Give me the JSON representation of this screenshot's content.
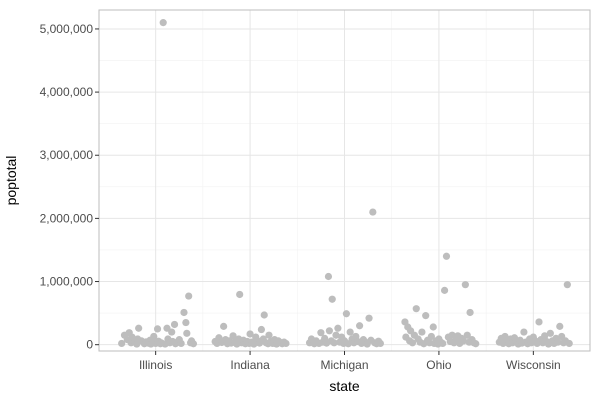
{
  "chart_data": {
    "type": "scatter",
    "xlabel": "state",
    "ylabel": "poptotal",
    "categories": [
      "Illinois",
      "Indiana",
      "Michigan",
      "Ohio",
      "Wisconsin"
    ],
    "y_ticks": [
      0,
      1000000,
      2000000,
      3000000,
      4000000,
      5000000
    ],
    "y_tick_labels": [
      "0",
      "1,000,000",
      "2,000,000",
      "3,000,000",
      "4,000,000",
      "5,000,000"
    ],
    "ylim": [
      -100000,
      5300000
    ],
    "grid": true,
    "jitter": true,
    "point_color": "#bdbdbd",
    "series": [
      {
        "category": "Illinois",
        "points": [
          [
            -0.36,
            20000
          ],
          [
            -0.33,
            150000
          ],
          [
            -0.3,
            80000
          ],
          [
            -0.28,
            190000
          ],
          [
            -0.26,
            30000
          ],
          [
            -0.25,
            120000
          ],
          [
            -0.22,
            40000
          ],
          [
            -0.2,
            10000
          ],
          [
            -0.19,
            90000
          ],
          [
            -0.18,
            260000
          ],
          [
            -0.15,
            60000
          ],
          [
            -0.12,
            15000
          ],
          [
            -0.1,
            45000
          ],
          [
            -0.08,
            25000
          ],
          [
            -0.06,
            70000
          ],
          [
            -0.05,
            10000
          ],
          [
            -0.03,
            35000
          ],
          [
            -0.02,
            130000
          ],
          [
            0.0,
            20000
          ],
          [
            0.02,
            250000
          ],
          [
            0.03,
            55000
          ],
          [
            0.05,
            15000
          ],
          [
            0.06,
            30000
          ],
          [
            0.08,
            5100000
          ],
          [
            0.1,
            10000
          ],
          [
            0.12,
            260000
          ],
          [
            0.13,
            90000
          ],
          [
            0.15,
            30000
          ],
          [
            0.17,
            200000
          ],
          [
            0.18,
            50000
          ],
          [
            0.2,
            320000
          ],
          [
            0.21,
            15000
          ],
          [
            0.23,
            40000
          ],
          [
            0.25,
            80000
          ],
          [
            0.27,
            20000
          ],
          [
            0.3,
            510000
          ],
          [
            0.32,
            350000
          ],
          [
            0.33,
            180000
          ],
          [
            0.35,
            770000
          ],
          [
            0.37,
            30000
          ],
          [
            0.38,
            60000
          ],
          [
            0.4,
            15000
          ]
        ]
      },
      {
        "category": "Indiana",
        "points": [
          [
            -0.37,
            50000
          ],
          [
            -0.35,
            20000
          ],
          [
            -0.33,
            110000
          ],
          [
            -0.3,
            35000
          ],
          [
            -0.28,
            290000
          ],
          [
            -0.26,
            80000
          ],
          [
            -0.24,
            15000
          ],
          [
            -0.22,
            60000
          ],
          [
            -0.2,
            25000
          ],
          [
            -0.18,
            140000
          ],
          [
            -0.16,
            40000
          ],
          [
            -0.14,
            10000
          ],
          [
            -0.12,
            90000
          ],
          [
            -0.11,
            795000
          ],
          [
            -0.09,
            30000
          ],
          [
            -0.07,
            70000
          ],
          [
            -0.05,
            15000
          ],
          [
            -0.03,
            50000
          ],
          [
            -0.01,
            20000
          ],
          [
            0.0,
            170000
          ],
          [
            0.02,
            40000
          ],
          [
            0.04,
            10000
          ],
          [
            0.06,
            120000
          ],
          [
            0.08,
            60000
          ],
          [
            0.1,
            25000
          ],
          [
            0.12,
            240000
          ],
          [
            0.14,
            90000
          ],
          [
            0.15,
            470000
          ],
          [
            0.17,
            30000
          ],
          [
            0.19,
            15000
          ],
          [
            0.2,
            150000
          ],
          [
            0.22,
            50000
          ],
          [
            0.24,
            20000
          ],
          [
            0.26,
            80000
          ],
          [
            0.28,
            10000
          ],
          [
            0.3,
            60000
          ],
          [
            0.32,
            35000
          ],
          [
            0.34,
            15000
          ],
          [
            0.36,
            40000
          ],
          [
            0.38,
            20000
          ]
        ]
      },
      {
        "category": "Michigan",
        "points": [
          [
            -0.37,
            30000
          ],
          [
            -0.35,
            90000
          ],
          [
            -0.32,
            15000
          ],
          [
            -0.3,
            60000
          ],
          [
            -0.27,
            20000
          ],
          [
            -0.25,
            190000
          ],
          [
            -0.23,
            40000
          ],
          [
            -0.21,
            100000
          ],
          [
            -0.19,
            25000
          ],
          [
            -0.17,
            1080000
          ],
          [
            -0.16,
            220000
          ],
          [
            -0.14,
            60000
          ],
          [
            -0.13,
            720000
          ],
          [
            -0.11,
            30000
          ],
          [
            -0.09,
            150000
          ],
          [
            -0.07,
            260000
          ],
          [
            -0.05,
            40000
          ],
          [
            -0.03,
            120000
          ],
          [
            -0.01,
            20000
          ],
          [
            0.0,
            60000
          ],
          [
            0.02,
            490000
          ],
          [
            0.04,
            15000
          ],
          [
            0.06,
            200000
          ],
          [
            0.08,
            90000
          ],
          [
            0.1,
            30000
          ],
          [
            0.12,
            130000
          ],
          [
            0.14,
            50000
          ],
          [
            0.16,
            300000
          ],
          [
            0.18,
            20000
          ],
          [
            0.2,
            80000
          ],
          [
            0.22,
            40000
          ],
          [
            0.24,
            10000
          ],
          [
            0.26,
            420000
          ],
          [
            0.28,
            70000
          ],
          [
            0.3,
            2100000
          ],
          [
            0.32,
            30000
          ],
          [
            0.34,
            15000
          ],
          [
            0.36,
            55000
          ],
          [
            0.38,
            20000
          ]
        ]
      },
      {
        "category": "Ohio",
        "points": [
          [
            -0.36,
            360000
          ],
          [
            -0.35,
            120000
          ],
          [
            -0.33,
            280000
          ],
          [
            -0.31,
            60000
          ],
          [
            -0.3,
            220000
          ],
          [
            -0.28,
            30000
          ],
          [
            -0.26,
            150000
          ],
          [
            -0.24,
            570000
          ],
          [
            -0.22,
            90000
          ],
          [
            -0.2,
            40000
          ],
          [
            -0.18,
            200000
          ],
          [
            -0.16,
            15000
          ],
          [
            -0.14,
            460000
          ],
          [
            -0.12,
            70000
          ],
          [
            -0.1,
            30000
          ],
          [
            -0.08,
            130000
          ],
          [
            -0.06,
            280000
          ],
          [
            -0.05,
            20000
          ],
          [
            -0.03,
            60000
          ],
          [
            -0.01,
            10000
          ],
          [
            0.0,
            90000
          ],
          [
            0.02,
            40000
          ],
          [
            0.04,
            20000
          ],
          [
            0.06,
            860000
          ],
          [
            0.08,
            1400000
          ],
          [
            0.1,
            120000
          ],
          [
            0.12,
            50000
          ],
          [
            0.14,
            150000
          ],
          [
            0.16,
            30000
          ],
          [
            0.18,
            70000
          ],
          [
            0.2,
            140000
          ],
          [
            0.22,
            20000
          ],
          [
            0.24,
            100000
          ],
          [
            0.26,
            60000
          ],
          [
            0.28,
            950000
          ],
          [
            0.3,
            150000
          ],
          [
            0.32,
            40000
          ],
          [
            0.33,
            510000
          ],
          [
            0.35,
            80000
          ],
          [
            0.37,
            30000
          ],
          [
            0.39,
            15000
          ]
        ]
      },
      {
        "category": "Wisconsin",
        "points": [
          [
            -0.36,
            40000
          ],
          [
            -0.34,
            100000
          ],
          [
            -0.32,
            20000
          ],
          [
            -0.3,
            130000
          ],
          [
            -0.28,
            60000
          ],
          [
            -0.26,
            15000
          ],
          [
            -0.24,
            90000
          ],
          [
            -0.22,
            30000
          ],
          [
            -0.2,
            110000
          ],
          [
            -0.18,
            50000
          ],
          [
            -0.16,
            10000
          ],
          [
            -0.14,
            70000
          ],
          [
            -0.12,
            25000
          ],
          [
            -0.1,
            200000
          ],
          [
            -0.08,
            40000
          ],
          [
            -0.06,
            15000
          ],
          [
            -0.04,
            90000
          ],
          [
            -0.02,
            30000
          ],
          [
            0.0,
            120000
          ],
          [
            0.02,
            60000
          ],
          [
            0.04,
            20000
          ],
          [
            0.06,
            360000
          ],
          [
            0.08,
            80000
          ],
          [
            0.1,
            30000
          ],
          [
            0.12,
            140000
          ],
          [
            0.14,
            50000
          ],
          [
            0.16,
            10000
          ],
          [
            0.18,
            180000
          ],
          [
            0.2,
            60000
          ],
          [
            0.22,
            20000
          ],
          [
            0.24,
            100000
          ],
          [
            0.26,
            40000
          ],
          [
            0.28,
            290000
          ],
          [
            0.3,
            130000
          ],
          [
            0.32,
            30000
          ],
          [
            0.34,
            60000
          ],
          [
            0.36,
            950000
          ],
          [
            0.38,
            20000
          ]
        ]
      }
    ]
  }
}
